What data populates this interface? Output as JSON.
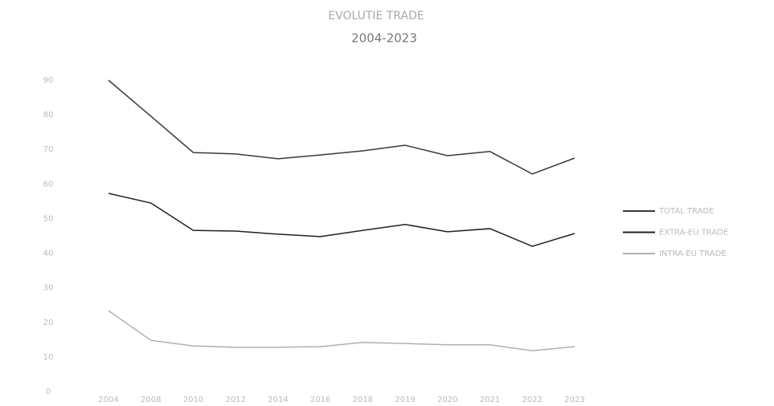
{
  "chart_data": {
    "type": "line",
    "title": "EVOLUTIE TRADE",
    "subtitle": "2004-2023",
    "categories": [
      "2004",
      "2008",
      "2010",
      "2012",
      "2014",
      "2016",
      "2018",
      "2019",
      "2020",
      "2021",
      "2022",
      "2023"
    ],
    "series": [
      {
        "name": "TOTAL TRADE",
        "color": "#3a3a3a",
        "values": [
          90,
          79.6,
          69.1,
          68.7,
          67.3,
          68.4,
          69.6,
          71.2,
          68.2,
          69.4,
          62.9,
          67.5
        ]
      },
      {
        "name": "EXTRA-EU TRADE",
        "color": "#222222",
        "values": [
          57.3,
          54.5,
          46.6,
          46.4,
          45.5,
          44.8,
          46.6,
          48.3,
          46.2,
          47.1,
          42.0,
          45.7
        ]
      },
      {
        "name": "INTRA-EU TRADE",
        "color": "#b0b0b0",
        "values": [
          23.4,
          14.8,
          13.2,
          12.8,
          12.8,
          13.0,
          14.2,
          13.9,
          13.5,
          13.5,
          11.8,
          13.0
        ]
      }
    ],
    "ylim": [
      0,
      90
    ],
    "yticks": [
      0,
      10,
      20,
      30,
      40,
      50,
      60,
      70,
      80,
      90
    ],
    "grid": false,
    "legend": "right"
  }
}
